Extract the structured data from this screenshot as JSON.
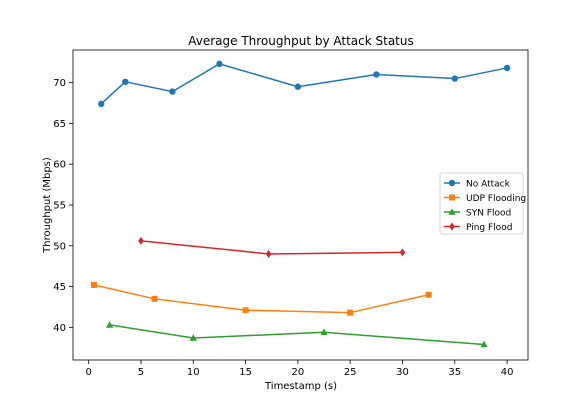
{
  "chart_data": {
    "type": "line",
    "title": "Average Throughput by Attack Status",
    "xlabel": "Timestamp (s)",
    "ylabel": "Throughput (Mbps)",
    "xlim": [
      -1.5,
      42
    ],
    "ylim": [
      36,
      74
    ],
    "xticks": [
      0,
      5,
      10,
      15,
      20,
      25,
      30,
      35,
      40
    ],
    "yticks": [
      40,
      45,
      50,
      55,
      60,
      65,
      70
    ],
    "grid": false,
    "legend_position": "center-right",
    "series": [
      {
        "name": "No Attack",
        "color": "#1f77b4",
        "marker": "circle",
        "x": [
          1.2,
          3.5,
          8.0,
          12.5,
          20.0,
          27.5,
          35.0,
          40.0
        ],
        "y": [
          67.4,
          70.1,
          68.9,
          72.3,
          69.5,
          71.0,
          70.5,
          71.8
        ]
      },
      {
        "name": "UDP Flooding",
        "color": "#ff7f0e",
        "marker": "square",
        "x": [
          0.5,
          6.3,
          15.0,
          25.0,
          32.5
        ],
        "y": [
          45.2,
          43.5,
          42.1,
          41.8,
          44.0
        ]
      },
      {
        "name": "SYN Flood",
        "color": "#2ca02c",
        "marker": "triangle",
        "x": [
          2.0,
          10.0,
          22.5,
          37.8
        ],
        "y": [
          40.3,
          38.7,
          39.4,
          37.9
        ]
      },
      {
        "name": "Ping Flood",
        "color": "#d62728",
        "marker": "diamond",
        "x": [
          5.0,
          17.2,
          30.0
        ],
        "y": [
          50.6,
          49.0,
          49.2
        ]
      }
    ]
  }
}
